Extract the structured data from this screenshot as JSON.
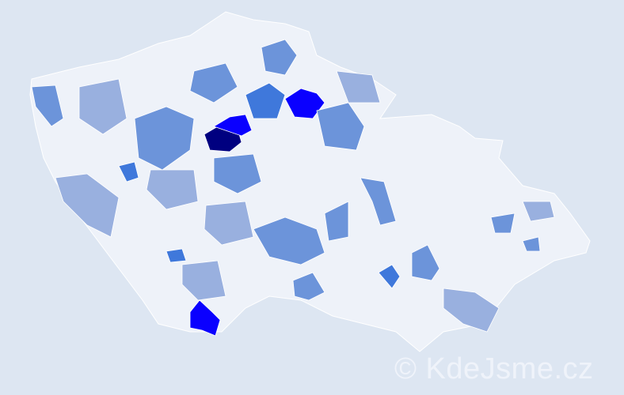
{
  "map": {
    "background": "#dde6f2",
    "land_color": "#eef2f9",
    "border_color": "#ffffff",
    "scale_colors": [
      "#eef2f9",
      "#c9d3ea",
      "#99b0df",
      "#6c94da",
      "#3f78db",
      "#0a00ff",
      "#000080"
    ]
  },
  "watermark": "© KdeJsme.cz"
}
